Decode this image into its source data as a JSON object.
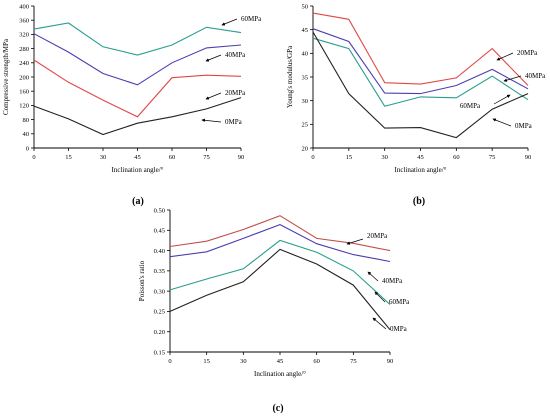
{
  "chart_data": [
    {
      "id": "a",
      "panel_label": "(a)",
      "type": "line",
      "x": [
        0,
        15,
        30,
        45,
        60,
        75,
        90
      ],
      "xticks": [
        "0",
        "15",
        "30",
        "45",
        "60",
        "75",
        "90"
      ],
      "xlabel": "Inclination angle/°",
      "ylabel": "Compressive strength/MPa",
      "ylim": [
        0,
        400
      ],
      "yticks": [
        "0",
        "40",
        "80",
        "120",
        "160",
        "200",
        "240",
        "280",
        "320",
        "360",
        "400"
      ],
      "series": [
        {
          "name": "60MPa",
          "color": "#2a9d8f",
          "values": [
            335,
            352,
            285,
            262,
            290,
            340,
            325
          ]
        },
        {
          "name": "40MPa",
          "color": "#4b3fb0",
          "values": [
            322,
            270,
            210,
            178,
            240,
            282,
            290
          ]
        },
        {
          "name": "20MPa",
          "color": "#e04848",
          "values": [
            248,
            185,
            135,
            88,
            198,
            205,
            202
          ]
        },
        {
          "name": "0MPa",
          "color": "#222222",
          "values": [
            118,
            82,
            38,
            70,
            88,
            110,
            142
          ]
        }
      ]
    },
    {
      "id": "b",
      "panel_label": "(b)",
      "type": "line",
      "x": [
        0,
        15,
        30,
        45,
        60,
        75,
        90
      ],
      "xticks": [
        "0",
        "15",
        "30",
        "45",
        "60",
        "75",
        "90"
      ],
      "xlabel": "Inclination angle/°",
      "ylabel": "Young's modulus/GPa",
      "ylim": [
        20,
        50
      ],
      "yticks": [
        "20",
        "25",
        "30",
        "35",
        "40",
        "45",
        "50"
      ],
      "series": [
        {
          "name": "20MPa",
          "color": "#e04848",
          "values": [
            48.5,
            47.2,
            33.8,
            33.5,
            34.8,
            41,
            33.2
          ]
        },
        {
          "name": "40MPa",
          "color": "#4b3fb0",
          "values": [
            45.2,
            42.5,
            31.6,
            31.5,
            33.2,
            36.6,
            32.5
          ]
        },
        {
          "name": "60MPa",
          "color": "#2a9d8f",
          "values": [
            43.2,
            41,
            28.8,
            30.8,
            30.6,
            35.2,
            30.2
          ]
        },
        {
          "name": "0MPa",
          "color": "#222222",
          "values": [
            44.5,
            31.5,
            24.2,
            24.3,
            22.2,
            28.2,
            31.5
          ]
        }
      ]
    },
    {
      "id": "c",
      "panel_label": "(c)",
      "type": "line",
      "x": [
        0,
        15,
        30,
        45,
        60,
        75,
        90
      ],
      "xticks": [
        "0",
        "15",
        "30",
        "45",
        "60",
        "75",
        "90"
      ],
      "xlabel": "Inclination angle/°",
      "ylabel": "Poisson's ratio",
      "ylim": [
        0.15,
        0.5
      ],
      "yticks": [
        "0.15",
        "0.20",
        "0.25",
        "0.30",
        "0.35",
        "0.40",
        "0.45",
        "0.50"
      ],
      "series": [
        {
          "name": "20MPa",
          "color": "#c0504d",
          "values": [
            0.41,
            0.423,
            0.452,
            0.486,
            0.43,
            0.418,
            0.4
          ]
        },
        {
          "name": "40MPa",
          "color": "#4b3fb0",
          "values": [
            0.385,
            0.397,
            0.43,
            0.464,
            0.417,
            0.39,
            0.373
          ]
        },
        {
          "name": "60MPa",
          "color": "#2a9d8f",
          "values": [
            0.303,
            0.33,
            0.355,
            0.425,
            0.396,
            0.35,
            0.267
          ]
        },
        {
          "name": "0MPa",
          "color": "#222222",
          "values": [
            0.25,
            0.29,
            0.323,
            0.403,
            0.367,
            0.315,
            0.205
          ]
        }
      ]
    }
  ]
}
